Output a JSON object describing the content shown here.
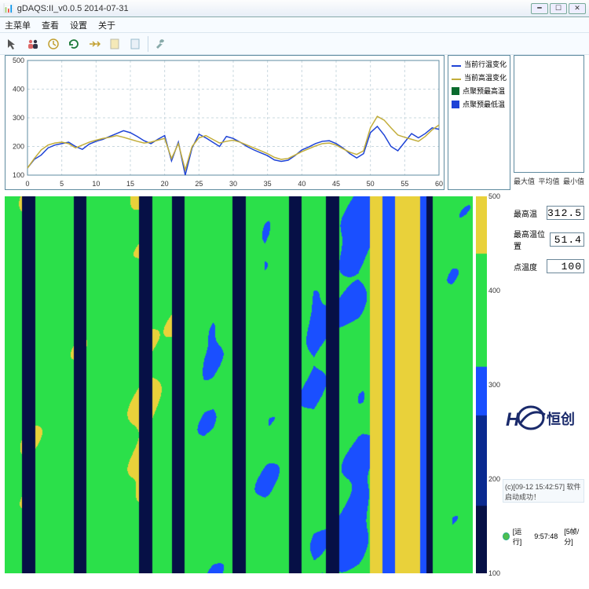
{
  "window": {
    "title": "gDAQS:II_v0.0.5 2014-07-31"
  },
  "menu": {
    "items": [
      "主菜单",
      "查看",
      "设置",
      "关于"
    ]
  },
  "line_chart": {
    "type": "line",
    "xlim": [
      0,
      60
    ],
    "ylim": [
      100,
      500
    ],
    "xtick_step": 5,
    "ytick_step": 100,
    "grid_color": "#c9d8df",
    "background_color": "#ffffff",
    "border": "#5f8ba0",
    "series": [
      {
        "name": "当前行温变化",
        "color": "#1e43d6",
        "width": 1.5,
        "y": [
          125,
          155,
          170,
          195,
          205,
          210,
          215,
          200,
          190,
          208,
          218,
          225,
          235,
          245,
          255,
          248,
          235,
          220,
          210,
          225,
          238,
          150,
          215,
          100,
          195,
          243,
          230,
          215,
          200,
          235,
          228,
          215,
          200,
          188,
          178,
          168,
          153,
          148,
          152,
          168,
          188,
          198,
          210,
          218,
          220,
          210,
          195,
          175,
          160,
          175,
          248,
          270,
          240,
          200,
          185,
          215,
          245,
          230,
          245,
          265,
          260
        ]
      },
      {
        "name": "当前高温变化",
        "color": "#c2ad3a",
        "width": 1.5,
        "y": [
          125,
          158,
          188,
          205,
          212,
          215,
          210,
          195,
          205,
          215,
          222,
          228,
          232,
          238,
          232,
          225,
          218,
          212,
          215,
          222,
          228,
          158,
          210,
          118,
          200,
          230,
          238,
          225,
          212,
          218,
          222,
          215,
          205,
          195,
          185,
          175,
          162,
          155,
          158,
          170,
          182,
          192,
          202,
          210,
          212,
          205,
          192,
          180,
          172,
          185,
          265,
          305,
          292,
          265,
          240,
          232,
          225,
          218,
          235,
          258,
          275
        ]
      }
    ],
    "legend": [
      {
        "label": "当前行温变化",
        "color": "#1e43d6",
        "type": "line"
      },
      {
        "label": "当前高温变化",
        "color": "#c2ad3a",
        "type": "line"
      },
      {
        "label": "点聚预最高温",
        "color": "#0a6b2e",
        "type": "square"
      },
      {
        "label": "点聚预最低温",
        "color": "#1e43d6",
        "type": "square"
      }
    ]
  },
  "mini_labels": {
    "max": "最大值",
    "avg": "平均值",
    "min": "最小值"
  },
  "heatmap": {
    "type": "heatmap",
    "vmin": 100,
    "vmax": 500,
    "colorbar_ticks": [
      100,
      200,
      300,
      400,
      500
    ],
    "colors": {
      "low": "#0a2a90",
      "mid": "#1a4fff",
      "high": "#2be04a",
      "peak": "#e9d13a",
      "dark": "#061046"
    }
  },
  "readouts": {
    "rows": [
      {
        "label": "最高温",
        "value": "312.5"
      },
      {
        "label": "最高温位置",
        "value": "51.4"
      },
      {
        "label": "点温度",
        "value": "100"
      }
    ]
  },
  "logo": {
    "text": "恒创",
    "prefix": "HC"
  },
  "status_msg": "(c)[09-12 15:42:57] 软件启动成功！",
  "status": {
    "run_label": "[运行]",
    "time": "9:57:48",
    "rate": "[5帧/分]"
  }
}
